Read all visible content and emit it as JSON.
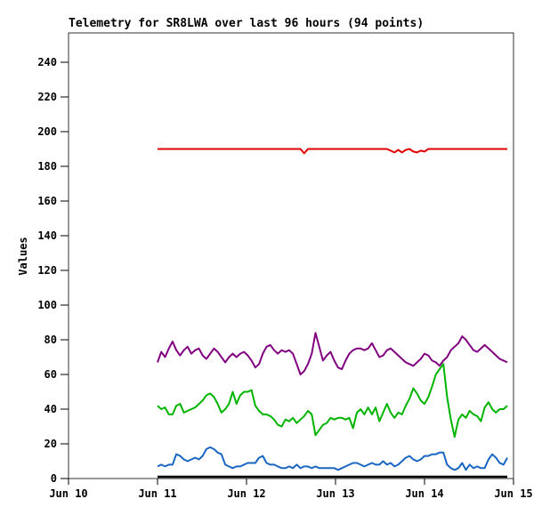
{
  "chart_data": {
    "type": "line",
    "title": "Telemetry for SR8LWA over last 96 hours (94 points)",
    "ylabel": "Values",
    "xlabel": "",
    "ylim": [
      0,
      256
    ],
    "yticks": [
      0,
      20,
      40,
      60,
      80,
      100,
      120,
      140,
      160,
      180,
      200,
      220,
      240
    ],
    "x_tick_labels": [
      "Jun 10",
      "Jun 11",
      "Jun 12",
      "Jun 13",
      "Jun 14",
      "Jun 15"
    ],
    "x_tick_days": [
      0,
      1,
      2,
      3,
      4,
      5
    ],
    "xlim_days": [
      0,
      5
    ],
    "grid": false,
    "legend_position": "none",
    "points_per_series": 94,
    "data_x_start_day": 1.0,
    "data_x_end_day": 4.93,
    "series": [
      {
        "name": "red",
        "color": "#e00000",
        "stroke_width": 2,
        "values": [
          190,
          190,
          190,
          190,
          190,
          190,
          190,
          190,
          190,
          190,
          190,
          190,
          190,
          190,
          190,
          190,
          190,
          190,
          190,
          190,
          190,
          190,
          190,
          190,
          190,
          190,
          190,
          190,
          190,
          190,
          190,
          190,
          190,
          190,
          190,
          190,
          190,
          190,
          190,
          187.5,
          190,
          190,
          190,
          190,
          190,
          190,
          190,
          190,
          190,
          190,
          190,
          190,
          190,
          190,
          190,
          190,
          190,
          190,
          190,
          190,
          190,
          190,
          189,
          188,
          189.5,
          188,
          189.5,
          190,
          188.5,
          188,
          189,
          188.5,
          190,
          190,
          190,
          190,
          190,
          190,
          190,
          190,
          190,
          190,
          190,
          190,
          190,
          190,
          190,
          190,
          190,
          190,
          190,
          190,
          190,
          190
        ]
      },
      {
        "name": "purple",
        "color": "#800080",
        "stroke_width": 2,
        "values": [
          67,
          73,
          70,
          75,
          79,
          74,
          71,
          74,
          76,
          72,
          74,
          75,
          71,
          69,
          72,
          75,
          73,
          70,
          67,
          70,
          72,
          70,
          72,
          73,
          71,
          68,
          64,
          66,
          72,
          76,
          77,
          74,
          72,
          74,
          73,
          74,
          72,
          66,
          60,
          62,
          66,
          72,
          84,
          76,
          68,
          71,
          73,
          68,
          64,
          63,
          68,
          72,
          74,
          75,
          75,
          74,
          75,
          78,
          74,
          70,
          71,
          74,
          75,
          73,
          71,
          69,
          67,
          66,
          65,
          67,
          69,
          72,
          71,
          68,
          67,
          65,
          68,
          70,
          74,
          76,
          78,
          82,
          80,
          77,
          74,
          73,
          75,
          77,
          75,
          73,
          71,
          69,
          68,
          67
        ]
      },
      {
        "name": "green",
        "color": "#00b400",
        "stroke_width": 2,
        "values": [
          42,
          40,
          41,
          37,
          37,
          42,
          43,
          38,
          39,
          40,
          41,
          43,
          45,
          48,
          49,
          47,
          43,
          38,
          40,
          43,
          50,
          43,
          48,
          50,
          50,
          51,
          42,
          39,
          37,
          37,
          36,
          34,
          31,
          30,
          34,
          33,
          35,
          32,
          34,
          36,
          39,
          37,
          25,
          28,
          31,
          32,
          35,
          34,
          35,
          35,
          34,
          35,
          29,
          38,
          40,
          37,
          41,
          37,
          41,
          33,
          38,
          43,
          38,
          35,
          38,
          37,
          42,
          46,
          52,
          49,
          45,
          43,
          47,
          53,
          60,
          63,
          66,
          47,
          34,
          24,
          34,
          37,
          35,
          39,
          37,
          36,
          33,
          41,
          44,
          40,
          38,
          40,
          40,
          42
        ]
      },
      {
        "name": "blue",
        "color": "#1a66c2",
        "stroke_width": 2,
        "values": [
          7,
          8,
          7,
          8,
          8,
          14,
          13,
          11,
          10,
          11,
          12,
          11,
          13,
          17,
          18,
          17,
          15,
          14,
          8,
          7,
          6,
          7,
          7,
          8,
          9,
          9,
          9,
          12,
          13,
          9,
          8,
          8,
          7,
          6,
          6,
          7,
          6,
          8,
          6,
          7,
          7,
          6,
          7,
          6,
          6,
          6,
          6,
          6,
          5,
          6,
          7,
          8,
          9,
          9,
          8,
          7,
          8,
          9,
          8,
          8,
          10,
          8,
          9,
          7,
          8,
          10,
          12,
          13,
          11,
          10,
          11,
          13,
          13,
          14,
          14,
          15,
          15,
          8,
          6,
          5,
          6,
          9,
          5,
          8,
          6,
          7,
          6,
          6,
          11,
          14,
          12,
          9,
          8,
          12
        ]
      },
      {
        "name": "black-baseline",
        "color": "#000000",
        "stroke_width": 2.5,
        "values": [
          1,
          1,
          1,
          1,
          1,
          1,
          1,
          1,
          1,
          1,
          1,
          1,
          1,
          1,
          1,
          1,
          1,
          1,
          1,
          1,
          1,
          1,
          1,
          1,
          1,
          1,
          1,
          1,
          1,
          1,
          1,
          1,
          1,
          1,
          1,
          1,
          1,
          1,
          1,
          1,
          1,
          1,
          1,
          1,
          1,
          1,
          1,
          1,
          1,
          1,
          1,
          1,
          1,
          1,
          1,
          1,
          1,
          1,
          1,
          1,
          1,
          1,
          1,
          1,
          1,
          1,
          1,
          1,
          1,
          1,
          1,
          1,
          1,
          1,
          1,
          1,
          1,
          1,
          1,
          1,
          1,
          1,
          1,
          1,
          1,
          1,
          1,
          1,
          1,
          1,
          1,
          1,
          1,
          1
        ]
      }
    ],
    "colors": {
      "background": "#ffffff",
      "border": "#333333",
      "tick": "#000000",
      "text": "#000000"
    }
  }
}
